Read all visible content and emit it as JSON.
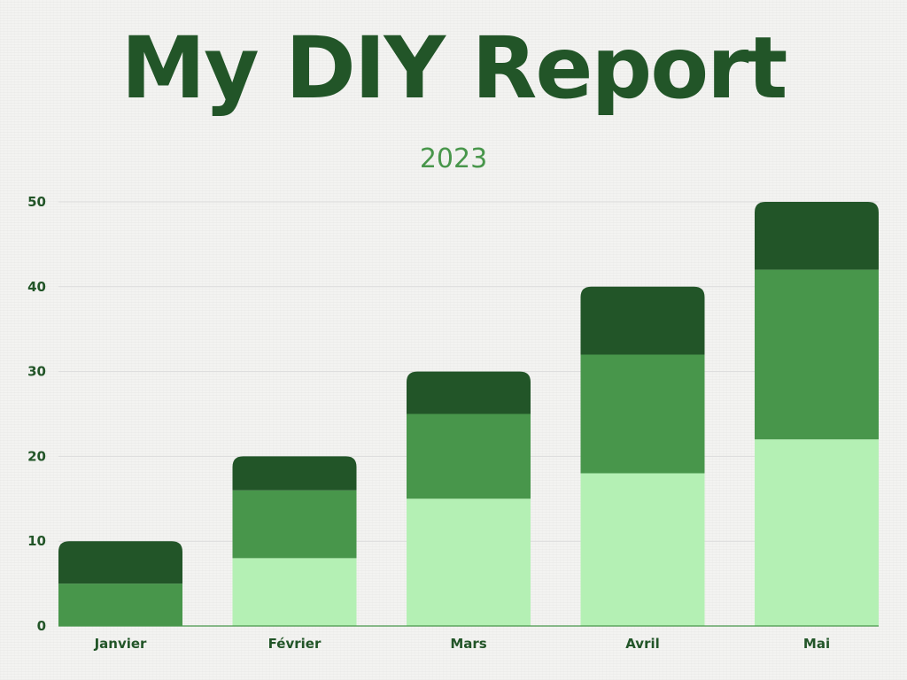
{
  "title": "My DIY Report",
  "subtitle": "2023",
  "colors": {
    "bottom": "#b4f0b4",
    "middle": "#48964b",
    "top": "#225528",
    "text": "#225528",
    "subtitle": "#48964b",
    "grid": "#dcdcdc"
  },
  "chart_data": {
    "type": "bar",
    "stacked": true,
    "categories": [
      "Janvier",
      "Février",
      "Mars",
      "Avril",
      "Mai"
    ],
    "series": [
      {
        "values": [
          0,
          8,
          15,
          18,
          22
        ]
      },
      {
        "values": [
          5,
          8,
          10,
          14,
          20
        ]
      },
      {
        "values": [
          5,
          4,
          5,
          8,
          8
        ]
      }
    ],
    "ylim": [
      0,
      50
    ],
    "yticks": [
      0,
      10,
      20,
      30,
      40,
      50
    ],
    "grid": true,
    "legend": "none"
  }
}
